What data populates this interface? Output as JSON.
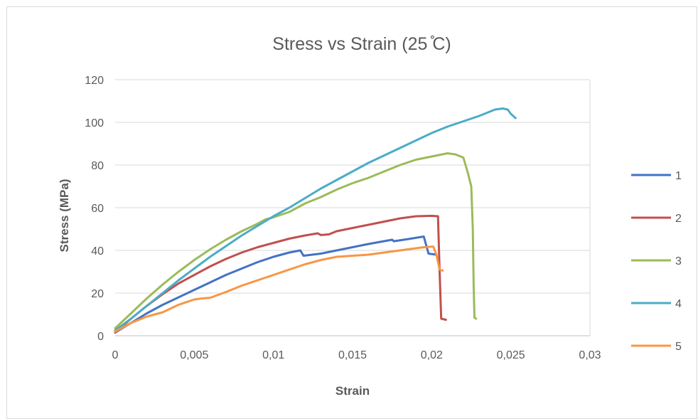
{
  "chart_data": {
    "type": "line",
    "title": "Stress vs Strain (25 ̊C)",
    "xlabel": "Strain",
    "ylabel": "Stress (MPa)",
    "xlim": [
      0,
      0.03
    ],
    "ylim": [
      0,
      120
    ],
    "x_ticks": [
      "0",
      "0,005",
      "0,01",
      "0,015",
      "0,02",
      "0,025",
      "0,03"
    ],
    "y_ticks": [
      "0",
      "20",
      "40",
      "60",
      "80",
      "100",
      "120"
    ],
    "grid": "horizontal",
    "legend_position": "right",
    "series": [
      {
        "name": "1",
        "color": "#4472c4",
        "points": [
          [
            0,
            1.5
          ],
          [
            0.001,
            6
          ],
          [
            0.002,
            10.5
          ],
          [
            0.003,
            14.5
          ],
          [
            0.004,
            18
          ],
          [
            0.005,
            21.5
          ],
          [
            0.006,
            25
          ],
          [
            0.007,
            28.5
          ],
          [
            0.008,
            31.5
          ],
          [
            0.009,
            34.5
          ],
          [
            0.01,
            37
          ],
          [
            0.011,
            39
          ],
          [
            0.0117,
            40
          ],
          [
            0.0119,
            37.5
          ],
          [
            0.013,
            38.5
          ],
          [
            0.014,
            40
          ],
          [
            0.015,
            41.5
          ],
          [
            0.016,
            43
          ],
          [
            0.0175,
            45
          ],
          [
            0.0176,
            44.3
          ],
          [
            0.0185,
            45.3
          ],
          [
            0.0195,
            46.5
          ],
          [
            0.0198,
            38.5
          ],
          [
            0.0203,
            38
          ]
        ]
      },
      {
        "name": "2",
        "color": "#c0504d",
        "points": [
          [
            0,
            1.5
          ],
          [
            0.001,
            8
          ],
          [
            0.002,
            14
          ],
          [
            0.003,
            19.5
          ],
          [
            0.004,
            24.5
          ],
          [
            0.005,
            28.5
          ],
          [
            0.006,
            32.5
          ],
          [
            0.007,
            36
          ],
          [
            0.008,
            39
          ],
          [
            0.009,
            41.5
          ],
          [
            0.01,
            43.5
          ],
          [
            0.011,
            45.5
          ],
          [
            0.012,
            47
          ],
          [
            0.0128,
            48
          ],
          [
            0.013,
            47.2
          ],
          [
            0.0135,
            47.5
          ],
          [
            0.014,
            49
          ],
          [
            0.015,
            50.5
          ],
          [
            0.016,
            52
          ],
          [
            0.017,
            53.5
          ],
          [
            0.018,
            55
          ],
          [
            0.019,
            56
          ],
          [
            0.02,
            56.2
          ],
          [
            0.0204,
            56
          ],
          [
            0.0205,
            30
          ],
          [
            0.0206,
            8
          ],
          [
            0.0209,
            7.5
          ]
        ]
      },
      {
        "name": "3",
        "color": "#9bbb59",
        "points": [
          [
            0,
            3.5
          ],
          [
            0.001,
            10.5
          ],
          [
            0.002,
            17.5
          ],
          [
            0.003,
            24
          ],
          [
            0.004,
            30
          ],
          [
            0.005,
            35.5
          ],
          [
            0.006,
            40.5
          ],
          [
            0.007,
            45
          ],
          [
            0.008,
            49
          ],
          [
            0.009,
            52.5
          ],
          [
            0.0095,
            54.5
          ],
          [
            0.01,
            55.5
          ],
          [
            0.011,
            58
          ],
          [
            0.012,
            62
          ],
          [
            0.013,
            65
          ],
          [
            0.014,
            68.5
          ],
          [
            0.015,
            71.5
          ],
          [
            0.016,
            74
          ],
          [
            0.017,
            77
          ],
          [
            0.018,
            80
          ],
          [
            0.019,
            82.5
          ],
          [
            0.02,
            84
          ],
          [
            0.021,
            85.5
          ],
          [
            0.0215,
            85
          ],
          [
            0.022,
            83.5
          ],
          [
            0.0223,
            76
          ],
          [
            0.0225,
            70
          ],
          [
            0.0226,
            50
          ],
          [
            0.02265,
            25
          ],
          [
            0.0227,
            8.5
          ],
          [
            0.0228,
            8
          ]
        ]
      },
      {
        "name": "4",
        "color": "#4bacc6",
        "points": [
          [
            0,
            2.5
          ],
          [
            0.001,
            8
          ],
          [
            0.002,
            14
          ],
          [
            0.003,
            20
          ],
          [
            0.004,
            26
          ],
          [
            0.005,
            31.5
          ],
          [
            0.006,
            37
          ],
          [
            0.007,
            42
          ],
          [
            0.008,
            47
          ],
          [
            0.009,
            51.5
          ],
          [
            0.01,
            56
          ],
          [
            0.011,
            60
          ],
          [
            0.012,
            64.5
          ],
          [
            0.013,
            69
          ],
          [
            0.014,
            73
          ],
          [
            0.015,
            77
          ],
          [
            0.016,
            81
          ],
          [
            0.017,
            84.5
          ],
          [
            0.018,
            88
          ],
          [
            0.019,
            91.5
          ],
          [
            0.02,
            95
          ],
          [
            0.021,
            98
          ],
          [
            0.022,
            100.5
          ],
          [
            0.023,
            103
          ],
          [
            0.024,
            106
          ],
          [
            0.0245,
            106.5
          ],
          [
            0.0248,
            106
          ],
          [
            0.025,
            104
          ],
          [
            0.0253,
            102
          ]
        ]
      },
      {
        "name": "5",
        "color": "#f79646",
        "points": [
          [
            0,
            2
          ],
          [
            0.001,
            6
          ],
          [
            0.002,
            9
          ],
          [
            0.003,
            11
          ],
          [
            0.004,
            14.5
          ],
          [
            0.005,
            17
          ],
          [
            0.0055,
            17.5
          ],
          [
            0.006,
            17.8
          ],
          [
            0.007,
            20.5
          ],
          [
            0.008,
            23.5
          ],
          [
            0.009,
            26
          ],
          [
            0.01,
            28.5
          ],
          [
            0.011,
            31
          ],
          [
            0.012,
            33.5
          ],
          [
            0.013,
            35.5
          ],
          [
            0.014,
            37
          ],
          [
            0.015,
            37.5
          ],
          [
            0.016,
            38
          ],
          [
            0.017,
            39
          ],
          [
            0.018,
            40
          ],
          [
            0.019,
            41
          ],
          [
            0.0195,
            41.5
          ],
          [
            0.0201,
            41.8
          ],
          [
            0.0203,
            38
          ],
          [
            0.0205,
            31
          ],
          [
            0.0207,
            30.5
          ]
        ]
      }
    ]
  }
}
